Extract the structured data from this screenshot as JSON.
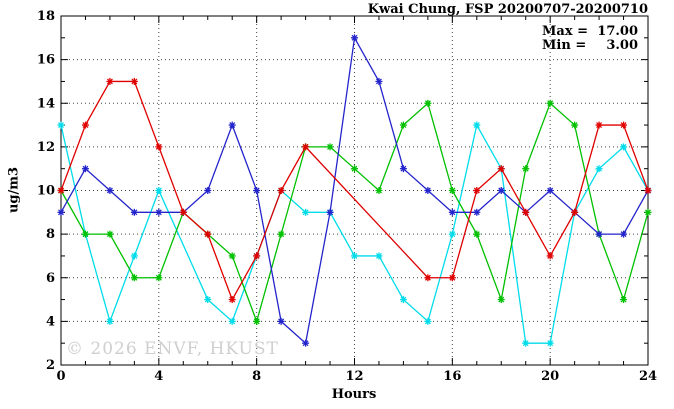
{
  "title": "Kwai Chung, FSP 20200707-20200710",
  "legend": {
    "max_label": "Max =",
    "max_value": "17.00",
    "min_label": "Min =",
    "min_value": "3.00"
  },
  "watermark": "© 2026 ENVF, HKUST",
  "axes": {
    "xlabel": "Hours",
    "ylabel": "ug/m3",
    "xlim": [
      0,
      24
    ],
    "ylim": [
      2,
      18
    ],
    "xtick_values": [
      0,
      4,
      8,
      12,
      16,
      20,
      24
    ],
    "xtick_labels": [
      "0",
      "4",
      "8",
      "12",
      "16",
      "20",
      "24"
    ],
    "ytick_values": [
      2,
      4,
      6,
      8,
      10,
      12,
      14,
      16,
      18
    ],
    "ytick_labels": [
      "2",
      "4",
      "6",
      "8",
      "10",
      "12",
      "14",
      "16",
      "18"
    ],
    "minor_step_x": 1,
    "minor_step_y": 1,
    "grid": true
  },
  "colors": {
    "axis": "#000000",
    "grid": "#444444",
    "background": "#ffffff",
    "text": "#000000",
    "watermark": "#cfcfcf"
  },
  "chart_data": {
    "type": "line",
    "title": "Kwai Chung, FSP 20200707-20200710",
    "xlabel": "Hours",
    "ylabel": "ug/m3",
    "xlim": [
      0,
      24
    ],
    "ylim": [
      2,
      18
    ],
    "max": 17.0,
    "min": 3.0,
    "x": [
      0,
      1,
      2,
      3,
      4,
      5,
      6,
      7,
      8,
      9,
      10,
      11,
      12,
      13,
      14,
      15,
      16,
      17,
      18,
      19,
      20,
      21,
      22,
      23,
      24
    ],
    "series": [
      {
        "name": "cyan",
        "color": "#00dcea",
        "values": [
          13,
          8,
          4,
          7,
          10,
          null,
          5,
          4,
          7,
          10,
          9,
          9,
          7,
          7,
          5,
          4,
          8,
          13,
          11,
          3,
          3,
          9,
          11,
          12,
          10
        ]
      },
      {
        "name": "green",
        "color": "#00c000",
        "values": [
          10,
          8,
          8,
          6,
          6,
          9,
          8,
          7,
          4,
          8,
          12,
          12,
          11,
          10,
          13,
          14,
          10,
          8,
          5,
          11,
          14,
          13,
          8,
          5,
          9
        ]
      },
      {
        "name": "blue",
        "color": "#2424cc",
        "values": [
          9,
          11,
          10,
          9,
          9,
          9,
          10,
          13,
          10,
          4,
          3,
          9,
          17,
          15,
          11,
          10,
          9,
          9,
          10,
          9,
          10,
          9,
          8,
          8,
          10
        ]
      },
      {
        "name": "red",
        "color": "#e00000",
        "values": [
          10,
          13,
          15,
          15,
          12,
          9,
          8,
          5,
          7,
          10,
          12,
          null,
          null,
          null,
          null,
          6,
          6,
          10,
          11,
          9,
          7,
          9,
          13,
          13,
          10
        ]
      }
    ]
  }
}
